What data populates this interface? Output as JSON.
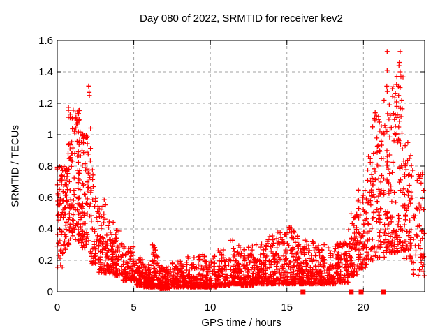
{
  "chart_data": {
    "type": "scatter",
    "title": "Day 080 of 2022, SRMTID for receiver kev2",
    "xlabel": "GPS time / hours",
    "ylabel": "SRMTID / TECUs",
    "xlim": [
      0,
      24
    ],
    "ylim": [
      0,
      1.6
    ],
    "xticks": [
      0,
      5,
      10,
      15,
      20
    ],
    "xtick_labels": [
      "0",
      "5",
      "10",
      "15",
      "20"
    ],
    "yticks": [
      0,
      0.2,
      0.4,
      0.6,
      0.8,
      1.0,
      1.2,
      1.4,
      1.6
    ],
    "ytick_labels": [
      "0",
      "0.2",
      "0.4",
      "0.6",
      "0.8",
      "1",
      "1.2",
      "1.4",
      "1.6"
    ],
    "grid": true,
    "grid_style": "dashed",
    "legend": "none",
    "marker": "plus",
    "colors": {
      "points": "#ff0000",
      "grid": "#a0a0a0",
      "axis": "#000000",
      "text": "#000000",
      "background": "#ffffff"
    },
    "density_profile_fields": [
      "hour_start",
      "hour_end",
      "n_points",
      "value_min",
      "value_max",
      "skew_toward_min"
    ],
    "density_profile": [
      [
        0.0,
        0.35,
        45,
        0.15,
        0.8,
        1.2
      ],
      [
        0.35,
        0.7,
        45,
        0.25,
        0.8,
        1.2
      ],
      [
        0.7,
        1.05,
        55,
        0.3,
        1.18,
        1.3
      ],
      [
        1.05,
        1.45,
        60,
        0.32,
        1.18,
        1.3
      ],
      [
        1.45,
        1.8,
        50,
        0.28,
        1.02,
        1.4
      ],
      [
        1.8,
        2.2,
        45,
        0.25,
        1.05,
        1.5
      ],
      [
        2.2,
        2.7,
        45,
        0.18,
        0.78,
        1.5
      ],
      [
        2.7,
        3.2,
        55,
        0.12,
        0.6,
        1.6
      ],
      [
        3.2,
        3.7,
        55,
        0.12,
        0.48,
        1.7
      ],
      [
        3.7,
        4.3,
        60,
        0.1,
        0.4,
        1.8
      ],
      [
        4.3,
        5.0,
        70,
        0.07,
        0.3,
        1.9
      ],
      [
        5.0,
        5.6,
        70,
        0.04,
        0.22,
        1.8
      ],
      [
        5.6,
        6.1,
        65,
        0.03,
        0.18,
        1.8
      ],
      [
        6.1,
        6.7,
        75,
        0.03,
        0.3,
        2.2
      ],
      [
        6.7,
        7.5,
        90,
        0.02,
        0.17,
        1.8
      ],
      [
        7.5,
        8.5,
        110,
        0.03,
        0.2,
        2.0
      ],
      [
        8.5,
        9.5,
        110,
        0.03,
        0.23,
        2.2
      ],
      [
        9.5,
        10.5,
        110,
        0.03,
        0.24,
        2.2
      ],
      [
        10.5,
        11.3,
        90,
        0.04,
        0.27,
        2.2
      ],
      [
        11.3,
        12.0,
        85,
        0.05,
        0.34,
        2.4
      ],
      [
        12.0,
        12.8,
        95,
        0.04,
        0.3,
        2.4
      ],
      [
        12.8,
        13.6,
        95,
        0.05,
        0.31,
        2.4
      ],
      [
        13.6,
        14.3,
        85,
        0.05,
        0.36,
        2.4
      ],
      [
        14.3,
        15.0,
        85,
        0.05,
        0.38,
        2.4
      ],
      [
        15.0,
        15.7,
        85,
        0.05,
        0.42,
        2.4
      ],
      [
        15.7,
        16.3,
        85,
        0.05,
        0.35,
        2.2
      ],
      [
        16.3,
        17.2,
        100,
        0.05,
        0.32,
        2.0
      ],
      [
        17.2,
        18.2,
        110,
        0.05,
        0.3,
        2.0
      ],
      [
        18.2,
        19.0,
        90,
        0.06,
        0.33,
        1.9
      ],
      [
        19.0,
        19.6,
        65,
        0.1,
        0.5,
        1.7
      ],
      [
        19.6,
        20.2,
        65,
        0.15,
        0.65,
        1.5
      ],
      [
        20.2,
        20.7,
        55,
        0.2,
        0.95,
        1.5
      ],
      [
        20.7,
        21.4,
        75,
        0.22,
        1.15,
        1.5
      ],
      [
        21.4,
        22.0,
        75,
        0.25,
        1.35,
        1.6
      ],
      [
        22.0,
        22.6,
        75,
        0.25,
        1.4,
        1.6
      ],
      [
        22.6,
        23.2,
        65,
        0.18,
        0.95,
        1.6
      ],
      [
        23.2,
        24.0,
        55,
        0.1,
        0.8,
        1.7
      ]
    ],
    "outliers": [
      [
        2.05,
        1.31
      ],
      [
        2.08,
        1.27
      ],
      [
        2.1,
        1.25
      ],
      [
        21.55,
        1.53
      ],
      [
        21.55,
        1.41
      ],
      [
        21.35,
        1.22
      ],
      [
        22.4,
        1.53
      ],
      [
        22.35,
        1.46
      ],
      [
        22.32,
        1.44
      ],
      [
        22.4,
        1.4
      ],
      [
        22.45,
        1.37
      ],
      [
        22.4,
        1.3
      ],
      [
        22.3,
        1.25
      ],
      [
        22.5,
        1.22
      ],
      [
        20.85,
        1.12
      ],
      [
        21.05,
        1.08
      ],
      [
        20.6,
        1.05
      ],
      [
        22.9,
        0.95
      ]
    ],
    "axis_markers": {
      "marker": "filled-square",
      "value": 0,
      "hours": [
        16.05,
        19.2,
        19.85,
        21.3
      ],
      "color": "#ff0000"
    }
  }
}
